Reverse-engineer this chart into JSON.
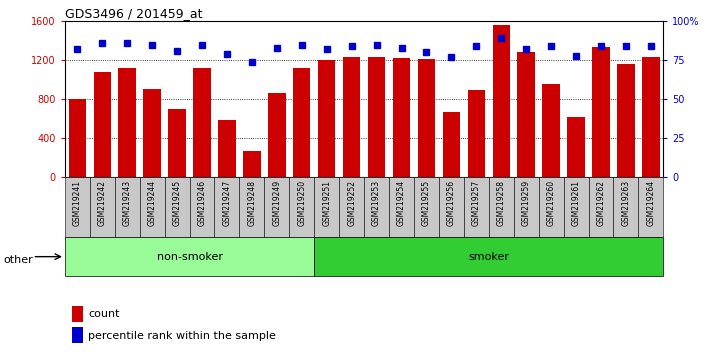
{
  "title": "GDS3496 / 201459_at",
  "samples": [
    "GSM219241",
    "GSM219242",
    "GSM219243",
    "GSM219244",
    "GSM219245",
    "GSM219246",
    "GSM219247",
    "GSM219248",
    "GSM219249",
    "GSM219250",
    "GSM219251",
    "GSM219252",
    "GSM219253",
    "GSM219254",
    "GSM219255",
    "GSM219256",
    "GSM219257",
    "GSM219258",
    "GSM219259",
    "GSM219260",
    "GSM219261",
    "GSM219262",
    "GSM219263",
    "GSM219264"
  ],
  "counts": [
    800,
    1080,
    1120,
    900,
    700,
    1120,
    590,
    270,
    860,
    1120,
    1200,
    1230,
    1230,
    1220,
    1210,
    670,
    890,
    1560,
    1280,
    960,
    620,
    1340,
    1160,
    1230
  ],
  "percentiles": [
    82,
    86,
    86,
    85,
    81,
    85,
    79,
    74,
    83,
    85,
    82,
    84,
    85,
    83,
    80,
    77,
    84,
    89,
    82,
    84,
    78,
    84,
    84,
    84
  ],
  "groups": [
    {
      "label": "non-smoker",
      "start": 0,
      "end": 10,
      "color": "#98FB98"
    },
    {
      "label": "smoker",
      "start": 10,
      "end": 24,
      "color": "#32CD32"
    }
  ],
  "bar_color": "#CC0000",
  "dot_color": "#0000CC",
  "left_ylim": [
    0,
    1600
  ],
  "left_yticks": [
    0,
    400,
    800,
    1200,
    1600
  ],
  "right_yticks": [
    0,
    25,
    50,
    75,
    100
  ],
  "right_ylim": [
    0,
    100
  ],
  "grid_values": [
    400,
    800,
    1200
  ],
  "bg_color": "#ffffff",
  "tick_label_color_left": "#CC0000",
  "tick_label_color_right": "#0000CC",
  "other_label": "other",
  "legend_count": "count",
  "legend_percentile": "percentile rank within the sample",
  "cell_bg": "#C8C8C8"
}
